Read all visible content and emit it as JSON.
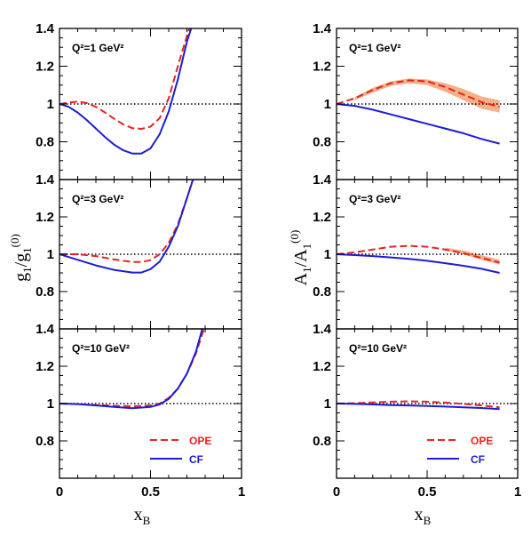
{
  "colors": {
    "ope": "#e8221e",
    "cf": "#1c1cd6",
    "band": "#f4b088",
    "reference": "#000000"
  },
  "panel_labels": {
    "q1": "Q²=1  GeV²",
    "q3": "Q²=3  GeV²",
    "q10": "Q²=10  GeV²"
  },
  "axis_titles": {
    "xlabel_left": "x",
    "xlabel_left_sub": "B",
    "xlabel_right": "x",
    "xlabel_right_sub": "B",
    "ylabel_left": "g",
    "ylabel_left_sub1": "1",
    "ylabel_left_slash": "/g",
    "ylabel_left_sub2": "1",
    "ylabel_left_sup": "(0)",
    "ylabel_right": "A",
    "ylabel_right_sub1": "1",
    "ylabel_right_slash": "/A",
    "ylabel_right_sub2": "1",
    "ylabel_right_sup": "(0)"
  },
  "legend": {
    "ope": "OPE",
    "cf": "CF"
  },
  "chart_data": [
    {
      "type": "line",
      "column": "left",
      "panel": "q1",
      "xlim": [
        0,
        1
      ],
      "ylim": [
        0.6,
        1.4
      ],
      "xticks": [
        0,
        0.5,
        1
      ],
      "yticks": [
        0.8,
        1,
        1.2,
        1.4
      ],
      "reference_line": 1,
      "series": [
        {
          "name": "OPE",
          "style": "dashed",
          "x": [
            0,
            0.05,
            0.1,
            0.15,
            0.2,
            0.25,
            0.3,
            0.35,
            0.4,
            0.45,
            0.5,
            0.55,
            0.6,
            0.65,
            0.7,
            0.72
          ],
          "y": [
            1.0,
            1.008,
            1.012,
            1.005,
            0.985,
            0.955,
            0.922,
            0.892,
            0.872,
            0.868,
            0.88,
            0.925,
            1.03,
            1.2,
            1.36,
            1.42
          ]
        },
        {
          "name": "CF",
          "style": "solid",
          "x": [
            0,
            0.05,
            0.1,
            0.15,
            0.2,
            0.25,
            0.3,
            0.35,
            0.4,
            0.45,
            0.5,
            0.55,
            0.6,
            0.65,
            0.7,
            0.73
          ],
          "y": [
            1.0,
            0.985,
            0.955,
            0.915,
            0.87,
            0.825,
            0.785,
            0.755,
            0.738,
            0.738,
            0.765,
            0.84,
            0.96,
            1.13,
            1.33,
            1.42
          ]
        }
      ]
    },
    {
      "type": "line",
      "column": "left",
      "panel": "q3",
      "xlim": [
        0,
        1
      ],
      "ylim": [
        0.6,
        1.4
      ],
      "xticks": [
        0,
        0.5,
        1
      ],
      "yticks": [
        0.8,
        1,
        1.2,
        1.4
      ],
      "reference_line": 1,
      "series": [
        {
          "name": "OPE",
          "style": "dashed",
          "x": [
            0,
            0.1,
            0.2,
            0.3,
            0.4,
            0.45,
            0.5,
            0.55,
            0.6,
            0.65,
            0.7,
            0.74
          ],
          "y": [
            1.0,
            1.0,
            0.99,
            0.972,
            0.958,
            0.958,
            0.968,
            1.0,
            1.06,
            1.16,
            1.3,
            1.42
          ]
        },
        {
          "name": "CF",
          "style": "solid",
          "x": [
            0,
            0.1,
            0.2,
            0.3,
            0.4,
            0.45,
            0.5,
            0.55,
            0.6,
            0.65,
            0.7,
            0.74
          ],
          "y": [
            1.0,
            0.97,
            0.94,
            0.916,
            0.902,
            0.902,
            0.92,
            0.96,
            1.04,
            1.15,
            1.3,
            1.42
          ]
        }
      ]
    },
    {
      "type": "line",
      "column": "left",
      "panel": "q10",
      "xlim": [
        0,
        1
      ],
      "ylim": [
        0.6,
        1.4
      ],
      "xticks": [
        0,
        0.5,
        1
      ],
      "yticks": [
        0.8,
        1,
        1.2,
        1.4
      ],
      "reference_line": 1,
      "series": [
        {
          "name": "OPE",
          "style": "dashed",
          "x": [
            0,
            0.1,
            0.2,
            0.3,
            0.4,
            0.5,
            0.55,
            0.6,
            0.65,
            0.7,
            0.75,
            0.8
          ],
          "y": [
            1.0,
            0.997,
            0.992,
            0.988,
            0.985,
            0.99,
            1.0,
            1.03,
            1.08,
            1.16,
            1.27,
            1.42
          ]
        },
        {
          "name": "CF",
          "style": "solid",
          "x": [
            0,
            0.1,
            0.2,
            0.3,
            0.4,
            0.5,
            0.55,
            0.6,
            0.65,
            0.7,
            0.75,
            0.79
          ],
          "y": [
            1.0,
            0.997,
            0.99,
            0.982,
            0.975,
            0.982,
            0.995,
            1.025,
            1.08,
            1.16,
            1.28,
            1.42
          ]
        }
      ]
    },
    {
      "type": "line",
      "column": "right",
      "panel": "q1",
      "xlim": [
        0,
        1
      ],
      "ylim": [
        0.6,
        1.4
      ],
      "xticks": [
        0,
        0.5,
        1
      ],
      "yticks": [
        0.8,
        1,
        1.2,
        1.4
      ],
      "reference_line": 1,
      "band": {
        "x": [
          0.1,
          0.2,
          0.3,
          0.4,
          0.5,
          0.6,
          0.7,
          0.8,
          0.9
        ],
        "upper": [
          1.035,
          1.085,
          1.12,
          1.135,
          1.13,
          1.11,
          1.08,
          1.04,
          1.02
        ],
        "lower": [
          1.02,
          1.06,
          1.095,
          1.11,
          1.1,
          1.065,
          1.02,
          0.975,
          0.955
        ]
      },
      "series": [
        {
          "name": "OPE",
          "style": "dashed",
          "x": [
            0,
            0.1,
            0.2,
            0.3,
            0.4,
            0.5,
            0.6,
            0.7,
            0.8,
            0.9
          ],
          "y": [
            1.0,
            1.03,
            1.075,
            1.11,
            1.125,
            1.12,
            1.09,
            1.05,
            1.01,
            0.985
          ]
        },
        {
          "name": "CF",
          "style": "solid",
          "x": [
            0,
            0.1,
            0.2,
            0.3,
            0.4,
            0.5,
            0.6,
            0.7,
            0.8,
            0.9
          ],
          "y": [
            1.0,
            0.99,
            0.97,
            0.945,
            0.92,
            0.895,
            0.87,
            0.845,
            0.815,
            0.79
          ]
        }
      ]
    },
    {
      "type": "line",
      "column": "right",
      "panel": "q3",
      "xlim": [
        0,
        1
      ],
      "ylim": [
        0.6,
        1.4
      ],
      "xticks": [
        0,
        0.5,
        1
      ],
      "yticks": [
        0.8,
        1,
        1.2,
        1.4
      ],
      "reference_line": 1,
      "band": {
        "x": [
          0.6,
          0.7,
          0.8,
          0.9
        ],
        "upper": [
          1.035,
          1.02,
          0.995,
          0.97
        ],
        "lower": [
          1.02,
          1.0,
          0.97,
          0.945
        ]
      },
      "series": [
        {
          "name": "OPE",
          "style": "dashed",
          "x": [
            0,
            0.1,
            0.2,
            0.3,
            0.4,
            0.5,
            0.6,
            0.7,
            0.8,
            0.9
          ],
          "y": [
            1.0,
            1.01,
            1.025,
            1.04,
            1.045,
            1.04,
            1.025,
            1.005,
            0.98,
            0.955
          ]
        },
        {
          "name": "CF",
          "style": "solid",
          "x": [
            0,
            0.1,
            0.2,
            0.3,
            0.4,
            0.5,
            0.6,
            0.7,
            0.8,
            0.9
          ],
          "y": [
            1.0,
            0.995,
            0.99,
            0.983,
            0.975,
            0.965,
            0.952,
            0.938,
            0.922,
            0.9
          ]
        }
      ]
    },
    {
      "type": "line",
      "column": "right",
      "panel": "q10",
      "xlim": [
        0,
        1
      ],
      "ylim": [
        0.6,
        1.4
      ],
      "xticks": [
        0,
        0.5,
        1
      ],
      "yticks": [
        0.8,
        1,
        1.2,
        1.4
      ],
      "reference_line": 1,
      "series": [
        {
          "name": "OPE",
          "style": "dashed",
          "x": [
            0,
            0.1,
            0.2,
            0.3,
            0.4,
            0.5,
            0.6,
            0.7,
            0.8,
            0.9
          ],
          "y": [
            1.0,
            1.002,
            1.006,
            1.01,
            1.012,
            1.01,
            1.005,
            0.998,
            0.99,
            0.98
          ]
        },
        {
          "name": "CF",
          "style": "solid",
          "x": [
            0,
            0.1,
            0.2,
            0.3,
            0.4,
            0.5,
            0.6,
            0.7,
            0.8,
            0.9
          ],
          "y": [
            1.0,
            0.998,
            0.995,
            0.992,
            0.99,
            0.987,
            0.984,
            0.98,
            0.976,
            0.97
          ]
        }
      ]
    }
  ]
}
